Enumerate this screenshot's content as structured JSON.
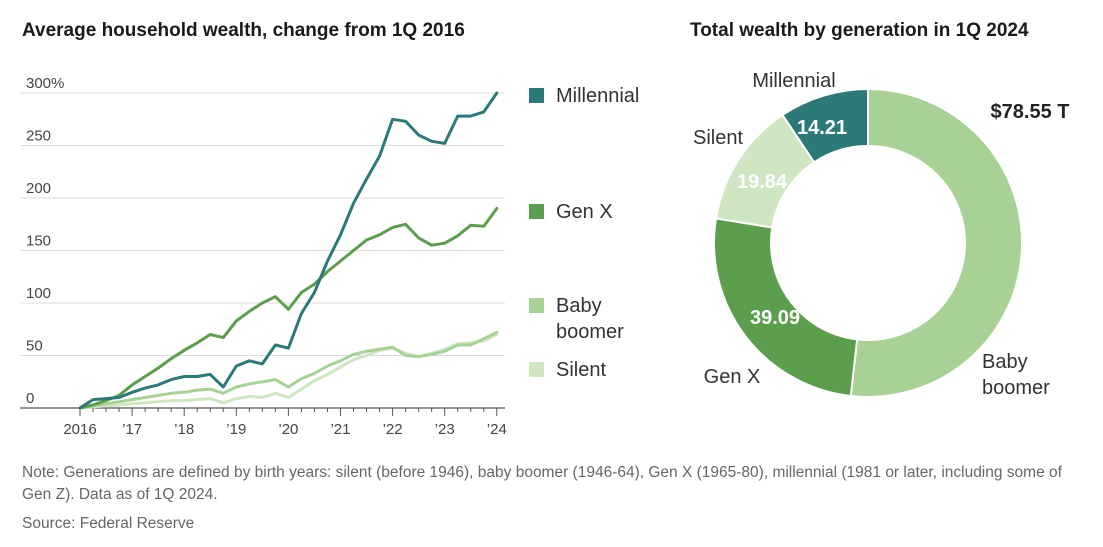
{
  "chart_data": [
    {
      "type": "line",
      "title": "Average household wealth, change from 1Q 2016",
      "xlabel": "",
      "ylabel": "",
      "x_tick_labels": [
        "2016",
        "’17",
        "’18",
        "’19",
        "’20",
        "’21",
        "’22",
        "’23",
        "’24"
      ],
      "x_tick_years": [
        2016,
        2017,
        2018,
        2019,
        2020,
        2021,
        2022,
        2023,
        2024
      ],
      "xlim": [
        2016,
        2024.1
      ],
      "y_tick_labels": [
        "300%",
        "250",
        "200",
        "150",
        "100",
        "50",
        "0"
      ],
      "y_tick_values": [
        300,
        250,
        200,
        150,
        100,
        50,
        0
      ],
      "ylim": [
        0,
        300
      ],
      "grid": true,
      "legend_position": "right",
      "x": [
        2016.0,
        2016.25,
        2016.5,
        2016.75,
        2017.0,
        2017.25,
        2017.5,
        2017.75,
        2018.0,
        2018.25,
        2018.5,
        2018.75,
        2019.0,
        2019.25,
        2019.5,
        2019.75,
        2020.0,
        2020.25,
        2020.5,
        2020.75,
        2021.0,
        2021.25,
        2021.5,
        2021.75,
        2022.0,
        2022.25,
        2022.5,
        2022.75,
        2023.0,
        2023.25,
        2023.5,
        2023.75,
        2024.0
      ],
      "series": [
        {
          "name": "Millennial",
          "color": "#2b7a78",
          "values": [
            0,
            8,
            9,
            10,
            15,
            19,
            22,
            27,
            30,
            30,
            32,
            20,
            40,
            45,
            42,
            60,
            57,
            90,
            110,
            140,
            165,
            195,
            218,
            240,
            275,
            273,
            260,
            254,
            252,
            278,
            278,
            282,
            300
          ]
        },
        {
          "name": "Gen X",
          "color": "#5b9e4d",
          "values": [
            0,
            3,
            7,
            12,
            22,
            30,
            38,
            47,
            55,
            62,
            70,
            67,
            83,
            92,
            100,
            106,
            94,
            110,
            118,
            130,
            140,
            150,
            160,
            165,
            172,
            175,
            162,
            155,
            157,
            164,
            174,
            173,
            190
          ]
        },
        {
          "name": "Baby boomer",
          "color": "#a8d195",
          "values": [
            0,
            2,
            4,
            6,
            8,
            10,
            12,
            14,
            15,
            17,
            18,
            14,
            20,
            23,
            25,
            27,
            20,
            28,
            33,
            40,
            45,
            51,
            54,
            56,
            58,
            50,
            49,
            51,
            54,
            60,
            60,
            66,
            72
          ]
        },
        {
          "name": "Silent",
          "color": "#cfe6c3",
          "values": [
            0,
            1,
            2,
            3,
            4,
            5,
            6,
            7,
            7,
            8,
            9,
            5,
            9,
            11,
            10,
            14,
            10,
            18,
            26,
            32,
            39,
            46,
            50,
            55,
            57,
            52,
            49,
            52,
            56,
            61,
            62,
            64,
            70
          ]
        }
      ]
    },
    {
      "type": "pie",
      "title": "Total wealth by generation in 1Q 2024",
      "unit": "T",
      "slices": [
        {
          "name": "Baby boomer",
          "value": 78.55,
          "label": "$78.55 T",
          "color": "#a8d195"
        },
        {
          "name": "Gen X",
          "value": 39.09,
          "label": "39.09",
          "color": "#5b9e4d"
        },
        {
          "name": "Silent",
          "value": 19.84,
          "label": "19.84",
          "color": "#cfe6c3"
        },
        {
          "name": "Millennial",
          "value": 14.21,
          "label": "14.21",
          "color": "#2b7a78"
        }
      ],
      "category_labels": [
        {
          "name": "Millennial",
          "lines": [
            "Millennial"
          ]
        },
        {
          "name": "Silent",
          "lines": [
            "Silent"
          ]
        },
        {
          "name": "Gen X",
          "lines": [
            "Gen X"
          ]
        },
        {
          "name": "Baby boomer",
          "lines": [
            "Baby",
            "boomer"
          ]
        }
      ]
    }
  ],
  "footer": {
    "note": "Note: Generations are defined by birth years: silent (before 1946), baby boomer (1946-64), Gen X (1965-80), millennial (1981 or later, including some of Gen Z). Data as of 1Q 2024.",
    "source": "Source: Federal Reserve"
  }
}
